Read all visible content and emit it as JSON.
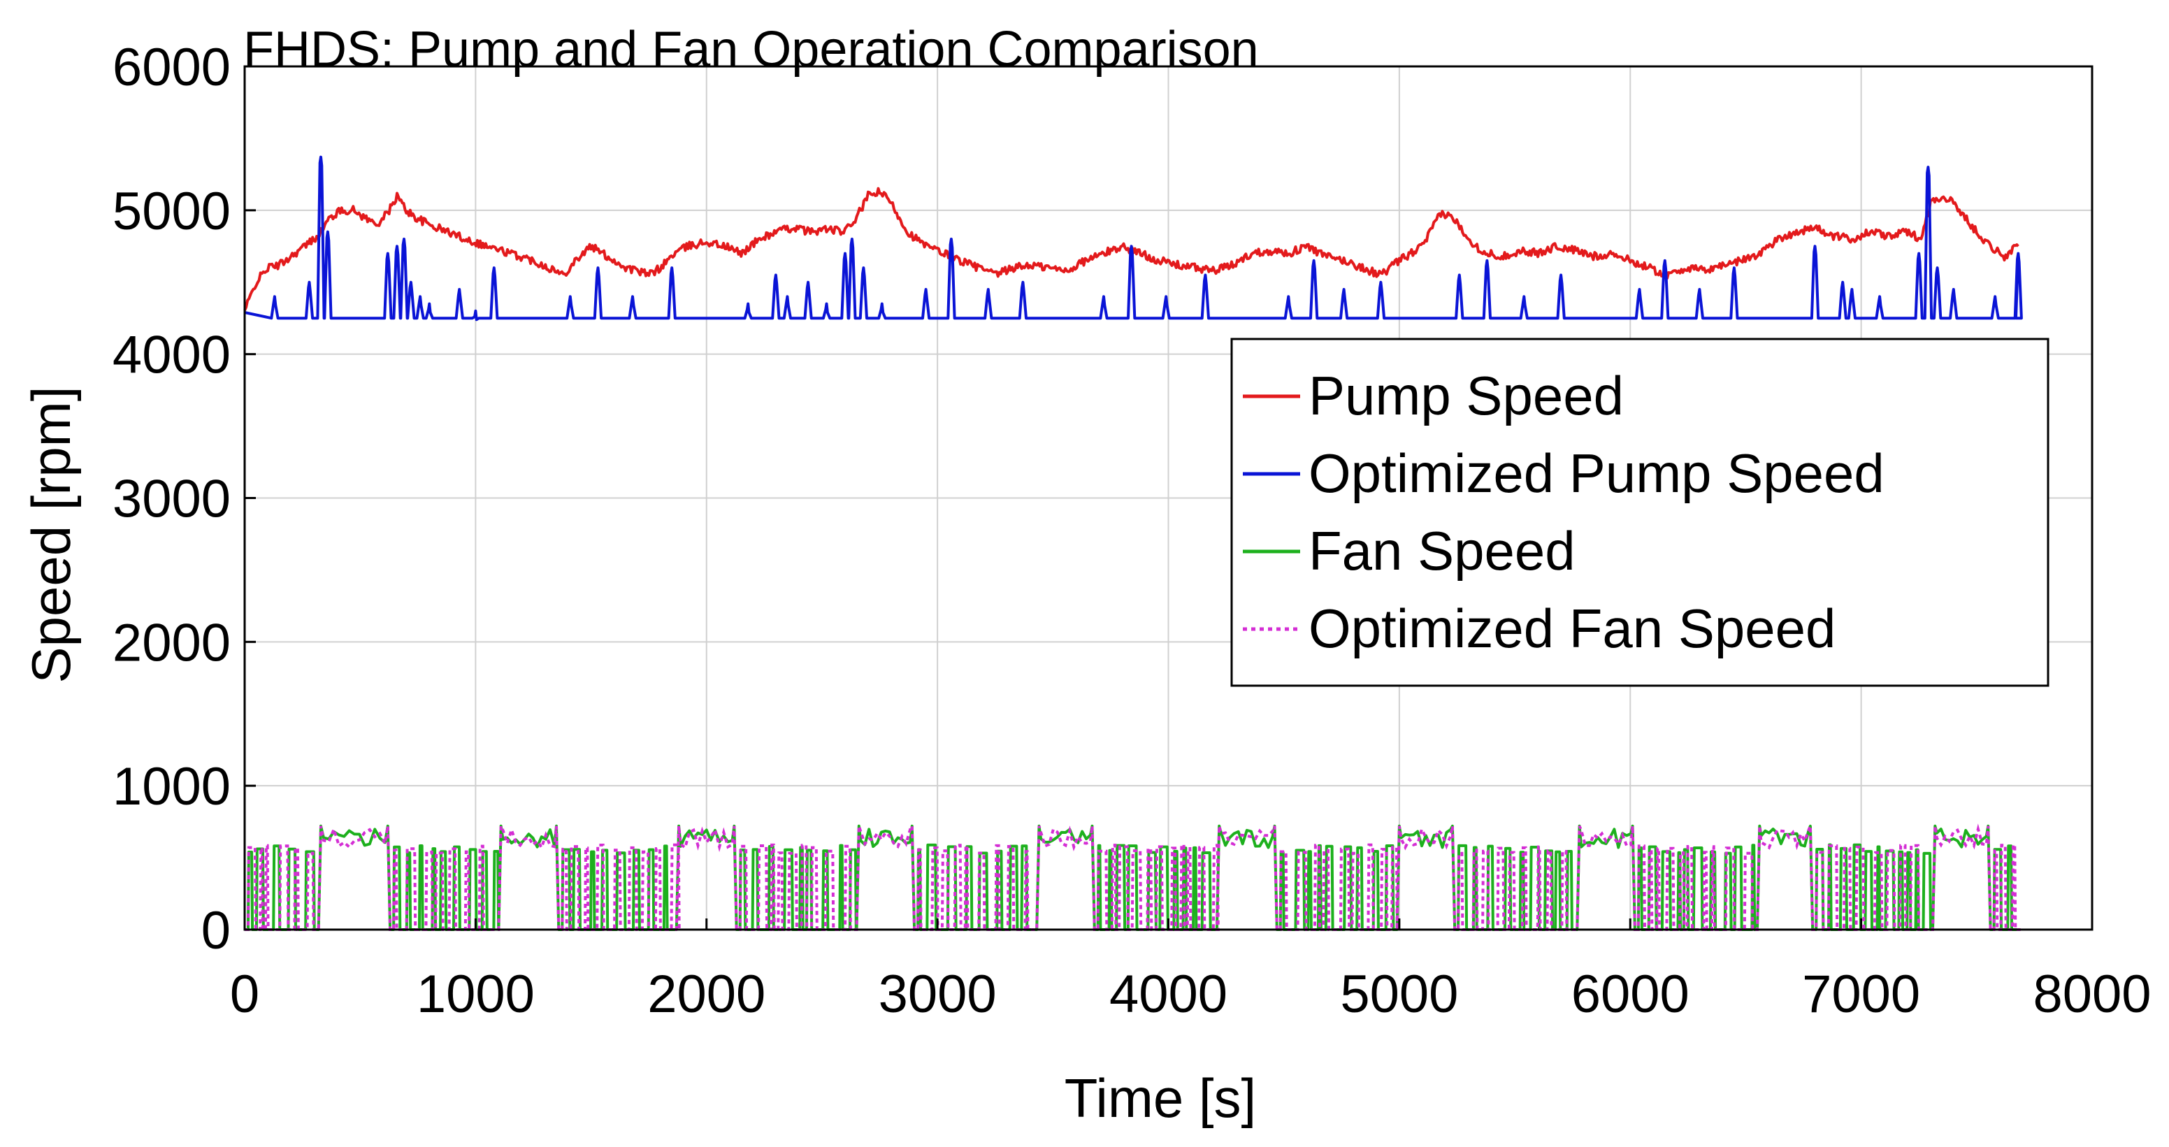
{
  "chart_data": {
    "type": "line",
    "title": "FHDS: Pump and Fan Operation Comparison",
    "xlabel": "Time [s]",
    "ylabel": "Speed [rpm]",
    "xlim": [
      0,
      8000
    ],
    "ylim": [
      0,
      6000
    ],
    "xticks": [
      0,
      1000,
      2000,
      3000,
      4000,
      5000,
      6000,
      7000,
      8000
    ],
    "yticks": [
      0,
      1000,
      2000,
      3000,
      4000,
      5000,
      6000
    ],
    "xtick_labels": [
      "0",
      "1000",
      "2000",
      "3000",
      "4000",
      "5000",
      "6000",
      "7000",
      "8000"
    ],
    "ytick_labels": [
      "0",
      "1000",
      "2000",
      "3000",
      "4000",
      "5000",
      "6000"
    ],
    "grid": true,
    "legend_position": "right",
    "series": [
      {
        "name": "Pump Speed",
        "color": "#e31a1c",
        "style": "solid",
        "x": [
          0,
          50,
          100,
          150,
          200,
          260,
          300,
          330,
          370,
          420,
          470,
          520,
          570,
          620,
          660,
          700,
          740,
          800,
          880,
          960,
          1050,
          1150,
          1250,
          1320,
          1380,
          1430,
          1500,
          1550,
          1600,
          1650,
          1700,
          1750,
          1800,
          1860,
          1920,
          2000,
          2080,
          2150,
          2230,
          2300,
          2380,
          2450,
          2520,
          2600,
          2650,
          2700,
          2750,
          2800,
          2870,
          2950,
          3030,
          3100,
          3180,
          3250,
          3330,
          3400,
          3480,
          3560,
          3640,
          3720,
          3800,
          3880,
          3960,
          4040,
          4120,
          4200,
          4280,
          4360,
          4440,
          4520,
          4600,
          4680,
          4760,
          4840,
          4920,
          5000,
          5100,
          5180,
          5230,
          5280,
          5330,
          5380,
          5450,
          5530,
          5600,
          5680,
          5760,
          5840,
          5920,
          6000,
          6080,
          6160,
          6240,
          6320,
          6400,
          6480,
          6560,
          6640,
          6720,
          6800,
          6880,
          6960,
          7040,
          7120,
          7200,
          7260,
          7300,
          7350,
          7400,
          7450,
          7500,
          7560,
          7620,
          7680
        ],
        "values": [
          4300,
          4500,
          4600,
          4620,
          4680,
          4750,
          4800,
          4850,
          4950,
          5000,
          5000,
          4950,
          4900,
          4980,
          5100,
          5000,
          4950,
          4900,
          4850,
          4800,
          4750,
          4700,
          4650,
          4600,
          4550,
          4650,
          4750,
          4700,
          4650,
          4600,
          4580,
          4550,
          4600,
          4700,
          4750,
          4780,
          4750,
          4700,
          4800,
          4850,
          4880,
          4850,
          4870,
          4850,
          4950,
          5100,
          5130,
          5050,
          4850,
          4750,
          4700,
          4650,
          4600,
          4550,
          4600,
          4620,
          4600,
          4580,
          4650,
          4700,
          4750,
          4700,
          4650,
          4620,
          4600,
          4580,
          4620,
          4700,
          4720,
          4700,
          4750,
          4680,
          4650,
          4600,
          4550,
          4650,
          4750,
          4980,
          4950,
          4850,
          4750,
          4700,
          4680,
          4720,
          4700,
          4750,
          4720,
          4680,
          4700,
          4650,
          4600,
          4550,
          4600,
          4580,
          4620,
          4650,
          4700,
          4800,
          4850,
          4880,
          4820,
          4800,
          4850,
          4820,
          4850,
          4800,
          5050,
          5100,
          5050,
          4950,
          4850,
          4750,
          4680,
          4750
        ]
      },
      {
        "name": "Optimized Pump Speed",
        "color": "#0a14d6",
        "style": "solid",
        "spikes": [
          [
            130,
            4400
          ],
          [
            280,
            4500
          ],
          [
            330,
            5370
          ],
          [
            360,
            4850
          ],
          [
            620,
            4700
          ],
          [
            660,
            4750
          ],
          [
            690,
            4800
          ],
          [
            720,
            4500
          ],
          [
            760,
            4400
          ],
          [
            800,
            4350
          ],
          [
            930,
            4450
          ],
          [
            1000,
            4300
          ],
          [
            1080,
            4600
          ],
          [
            1410,
            4400
          ],
          [
            1530,
            4600
          ],
          [
            1680,
            4400
          ],
          [
            1850,
            4600
          ],
          [
            2180,
            4350
          ],
          [
            2300,
            4550
          ],
          [
            2350,
            4400
          ],
          [
            2440,
            4500
          ],
          [
            2520,
            4350
          ],
          [
            2600,
            4700
          ],
          [
            2630,
            4800
          ],
          [
            2680,
            4600
          ],
          [
            2760,
            4350
          ],
          [
            2950,
            4450
          ],
          [
            3060,
            4800
          ],
          [
            3220,
            4450
          ],
          [
            3370,
            4500
          ],
          [
            3720,
            4400
          ],
          [
            3840,
            4750
          ],
          [
            3990,
            4400
          ],
          [
            4160,
            4550
          ],
          [
            4520,
            4400
          ],
          [
            4630,
            4650
          ],
          [
            4760,
            4450
          ],
          [
            4920,
            4500
          ],
          [
            5260,
            4550
          ],
          [
            5380,
            4650
          ],
          [
            5540,
            4400
          ],
          [
            5700,
            4550
          ],
          [
            6040,
            4450
          ],
          [
            6150,
            4650
          ],
          [
            6300,
            4450
          ],
          [
            6450,
            4600
          ],
          [
            6800,
            4750
          ],
          [
            6920,
            4500
          ],
          [
            6960,
            4450
          ],
          [
            7080,
            4400
          ],
          [
            7250,
            4700
          ],
          [
            7290,
            5300
          ],
          [
            7330,
            4600
          ],
          [
            7400,
            4450
          ],
          [
            7580,
            4400
          ],
          [
            7680,
            4700
          ]
        ],
        "baseline": 4250,
        "x_range": [
          0,
          7680
        ]
      },
      {
        "name": "Fan Speed",
        "color": "#1db01d",
        "style": "solid",
        "high_blocks": [
          [
            320,
            630
          ],
          [
            1100,
            1360
          ],
          [
            1870,
            2130
          ],
          [
            2650,
            2900
          ],
          [
            3430,
            3680
          ],
          [
            4210,
            4470
          ],
          [
            4990,
            5240
          ],
          [
            5770,
            6020
          ],
          [
            6550,
            6790
          ],
          [
            7310,
            7560
          ]
        ],
        "block_level": 720,
        "gaps": [
          [
            0,
            320
          ],
          [
            630,
            1100
          ],
          [
            1360,
            1870
          ],
          [
            2130,
            2650
          ],
          [
            2900,
            3430
          ],
          [
            3680,
            4210
          ],
          [
            4470,
            4990
          ],
          [
            5240,
            5770
          ],
          [
            6020,
            6550
          ],
          [
            6790,
            7310
          ],
          [
            7560,
            7690
          ]
        ],
        "gap_level": 560
      },
      {
        "name": "Optimized Fan Speed",
        "color": "#d42ed4",
        "style": "dotted"
      }
    ],
    "legend": [
      "Pump Speed",
      "Optimized Pump Speed",
      "Fan Speed",
      "Optimized Fan Speed"
    ]
  }
}
